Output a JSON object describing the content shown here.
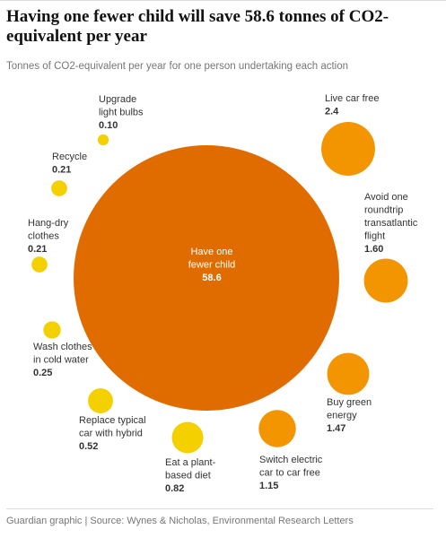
{
  "chart_data": {
    "type": "bubble",
    "title": "Having one fewer child will save 58.6 tonnes of CO2-equivalent per year",
    "subtitle": "Tonnes of CO2-equivalent per year for one person undertaking each action",
    "source": "Guardian graphic | Source: Wynes & Nicholas, Environmental Research Letters",
    "categories": [
      "Have one\nfewer child",
      "Live car free",
      "Avoid one\nroundtrip\ntransatlantic\nflight",
      "Buy green\nenergy",
      "Switch electric\ncar to car free",
      "Eat a plant-\nbased diet",
      "Replace typical\ncar with hybrid",
      "Wash clothes\nin cold water",
      "Hang-dry\nclothes",
      "Recycle",
      "Upgrade\nlight bulbs"
    ],
    "values": [
      58.6,
      2.4,
      1.6,
      1.47,
      1.15,
      0.82,
      0.52,
      0.25,
      0.21,
      0.21,
      0.1
    ],
    "value_labels": [
      "58.6",
      "2.4",
      "1.60",
      "1.47",
      "1.15",
      "0.82",
      "0.52",
      "0.25",
      "0.21",
      "0.21",
      "0.10"
    ],
    "colors": [
      "#e06c00",
      "#f29500",
      "#f29500",
      "#f29500",
      "#f29500",
      "#f5d000",
      "#f5d000",
      "#f5d000",
      "#f5d000",
      "#f5d000",
      "#f5d000"
    ]
  }
}
